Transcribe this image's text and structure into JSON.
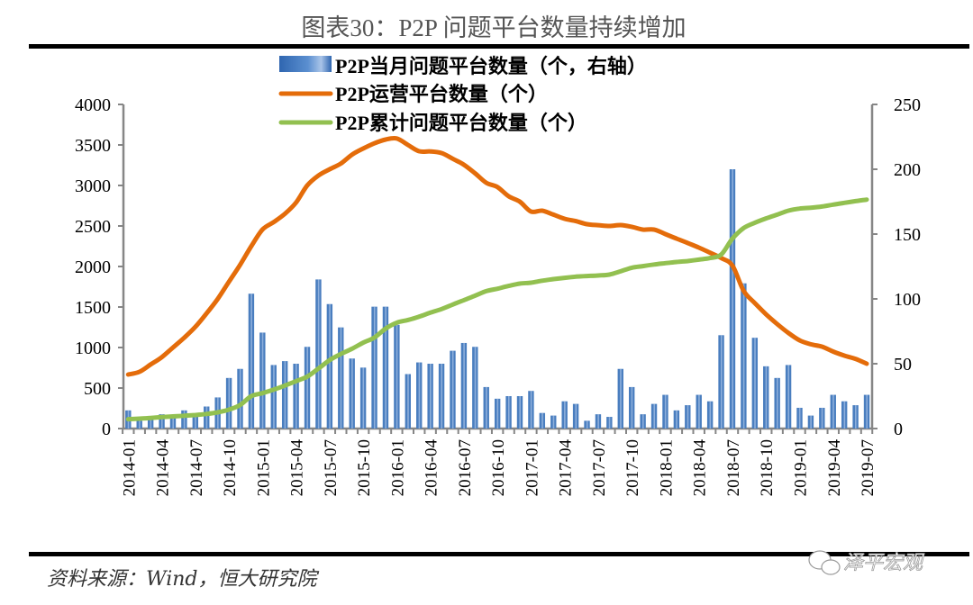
{
  "chart_data": {
    "type": "bar+line",
    "title": "图表30：P2P 问题平台数量持续增加",
    "source": "资料来源：Wind，恒大研究院",
    "watermark": "泽平宏观",
    "x": [
      "2014-01",
      "2014-02",
      "2014-03",
      "2014-04",
      "2014-05",
      "2014-06",
      "2014-07",
      "2014-08",
      "2014-09",
      "2014-10",
      "2014-11",
      "2014-12",
      "2015-01",
      "2015-02",
      "2015-03",
      "2015-04",
      "2015-05",
      "2015-06",
      "2015-07",
      "2015-08",
      "2015-09",
      "2015-10",
      "2015-11",
      "2015-12",
      "2016-01",
      "2016-02",
      "2016-03",
      "2016-04",
      "2016-05",
      "2016-06",
      "2016-07",
      "2016-08",
      "2016-09",
      "2016-10",
      "2016-11",
      "2016-12",
      "2017-01",
      "2017-02",
      "2017-03",
      "2017-04",
      "2017-05",
      "2017-06",
      "2017-07",
      "2017-08",
      "2017-09",
      "2017-10",
      "2017-11",
      "2017-12",
      "2018-01",
      "2018-02",
      "2018-03",
      "2018-04",
      "2018-05",
      "2018-06",
      "2018-07",
      "2018-08",
      "2018-09",
      "2018-10",
      "2018-11",
      "2018-12",
      "2019-01",
      "2019-02",
      "2019-03",
      "2019-04",
      "2019-05",
      "2019-06",
      "2019-07"
    ],
    "x_tick_labels": [
      "2014-01",
      "2014-04",
      "2014-07",
      "2014-10",
      "2015-01",
      "2015-04",
      "2015-07",
      "2015-10",
      "2016-01",
      "2016-04",
      "2016-07",
      "2016-10",
      "2017-01",
      "2017-04",
      "2017-07",
      "2017-10",
      "2018-01",
      "2018-04",
      "2018-07",
      "2018-10",
      "2019-01",
      "2019-04",
      "2019-07"
    ],
    "left_axis": {
      "ylim": [
        0,
        4000
      ],
      "ticks": [
        "0",
        "500",
        "1000",
        "1500",
        "2000",
        "2500",
        "3000",
        "3500",
        "4000"
      ]
    },
    "right_axis": {
      "ylim": [
        0,
        250
      ],
      "ticks": [
        "0",
        "50",
        "100",
        "150",
        "200",
        "250"
      ]
    },
    "series": [
      {
        "name": "P2P当月问题平台数量（个，右轴）",
        "type": "bar",
        "axis": "right",
        "color": "#4a7ebf",
        "values": [
          14,
          6,
          7,
          11,
          8,
          14,
          9,
          17,
          24,
          39,
          46,
          104,
          74,
          49,
          52,
          50,
          63,
          115,
          96,
          78,
          54,
          47,
          94,
          94,
          80,
          42,
          51,
          50,
          50,
          60,
          66,
          63,
          32,
          23,
          25,
          25,
          29,
          12,
          10,
          21,
          19,
          6,
          11,
          9,
          46,
          32,
          11,
          19,
          26,
          14,
          18,
          26,
          21,
          72,
          200,
          112,
          70,
          48,
          39,
          49,
          16,
          10,
          16,
          26,
          21,
          18,
          26
        ]
      },
      {
        "name": "P2P运营平台数量（个）",
        "type": "line",
        "axis": "left",
        "color": "#e46c0a",
        "values": [
          667,
          700,
          790,
          881,
          1000,
          1120,
          1255,
          1420,
          1600,
          1811,
          2020,
          2250,
          2456,
          2548,
          2650,
          2789,
          3000,
          3122,
          3200,
          3270,
          3380,
          3456,
          3520,
          3567,
          3580,
          3500,
          3422,
          3420,
          3400,
          3330,
          3256,
          3150,
          3033,
          2980,
          2867,
          2800,
          2678,
          2689,
          2640,
          2589,
          2560,
          2522,
          2510,
          2500,
          2511,
          2490,
          2456,
          2456,
          2400,
          2344,
          2290,
          2233,
          2170,
          2104,
          2011,
          1700,
          1548,
          1410,
          1289,
          1180,
          1089,
          1040,
          1011,
          950,
          900,
          860,
          800
        ]
      },
      {
        "name": "P2P累计问题平台数量（个）",
        "type": "line",
        "axis": "left",
        "color": "#92c050",
        "values": [
          115,
          122,
          130,
          141,
          150,
          158,
          167,
          180,
          200,
          233,
          290,
          400,
          437,
          480,
          530,
          585,
          641,
          740,
          844,
          920,
          985,
          1060,
          1122,
          1233,
          1307,
          1340,
          1381,
          1430,
          1474,
          1530,
          1585,
          1640,
          1696,
          1726,
          1760,
          1789,
          1800,
          1825,
          1844,
          1860,
          1874,
          1882,
          1889,
          1900,
          1940,
          1985,
          2005,
          2025,
          2041,
          2055,
          2067,
          2085,
          2104,
          2148,
          2344,
          2474,
          2540,
          2593,
          2640,
          2689,
          2715,
          2725,
          2740,
          2763,
          2785,
          2807,
          2826
        ]
      }
    ]
  }
}
